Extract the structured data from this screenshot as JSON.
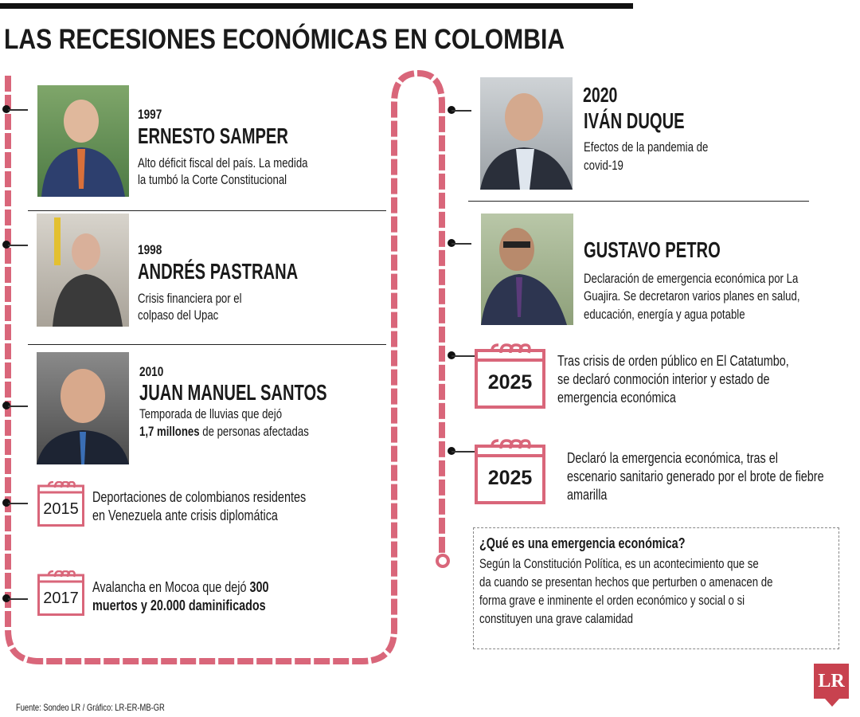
{
  "title": "LAS RECESIONES ECONÓMICAS EN COLOMBIA",
  "colors": {
    "timeline": "#d9667a",
    "logo": "#c8424f",
    "text": "#1a1a1a"
  },
  "entries": {
    "samper": {
      "year": "1997",
      "name": "ERNESTO SAMPER",
      "lines": [
        "Alto déficit fiscal del país. La medida",
        "la tumbó la Corte Constitucional"
      ]
    },
    "pastrana": {
      "year": "1998",
      "name": "ANDRÉS PASTRANA",
      "lines": [
        "Crisis financiera por el",
        "colpaso del Upac"
      ]
    },
    "santos": {
      "year": "2010",
      "name": "JUAN MANUEL SANTOS",
      "line1": "Temporada de lluvias que dejó",
      "line2_bold": "1,7 millones",
      "line2_rest": " de personas afectadas"
    },
    "e2015": {
      "year": "2015",
      "lines": [
        "Deportaciones de colombianos residentes",
        "en Venezuela ante crisis diplomática"
      ]
    },
    "e2017": {
      "year": "2017",
      "line1": "Avalancha en Mocoa que dejó ",
      "line1_bold": "300",
      "line2_bold": "muertos y 20.000 daminificados"
    },
    "duque": {
      "year": "2020",
      "name": "IVÁN DUQUE",
      "lines": [
        "Efectos de la pandemia de",
        "covid-19"
      ]
    },
    "petro": {
      "name": "GUSTAVO PETRO",
      "lines": [
        "Declaración de emergencia económica por La",
        "Guajira. Se decretaron varios planes en salud,",
        "educación, energía y agua potable"
      ]
    },
    "e2025a": {
      "year": "2025",
      "lines": [
        "Tras crisis de orden público en El Catatumbo,",
        "se declaró conmoción interior y estado de",
        "emergencia económica"
      ]
    },
    "e2025b": {
      "year": "2025",
      "lines": [
        "Declaró la emergencia económica, tras el",
        "escenario sanitario generado por el brote de fiebre",
        "amarilla"
      ]
    }
  },
  "info_box": {
    "title": "¿Qué es una emergencia económica?",
    "lines": [
      "Según la Constitución Política, es un acontecimiento que se",
      "da cuando se presentan hechos que perturben o amenacen de",
      "forma grave e inminente el orden económico y social o si",
      "constituyen una grave calamidad"
    ]
  },
  "footer": "Fuente: Sondeo LR / Gráfico: LR-ER-MB-GR",
  "logo": "LR",
  "icons": {
    "calendar": "calendar-icon",
    "timeline_dot": "bullet-dot-icon"
  }
}
